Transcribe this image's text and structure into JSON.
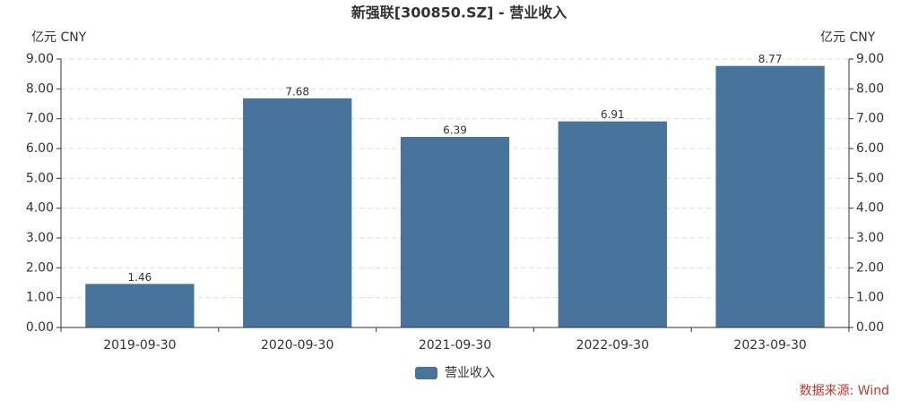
{
  "chart_data": {
    "type": "bar",
    "title": "新强联[300850.SZ] - 营业收入",
    "y_unit": "亿元  CNY",
    "y2_unit": "亿元  CNY",
    "categories": [
      "2019-09-30",
      "2020-09-30",
      "2021-09-30",
      "2022-09-30",
      "2023-09-30"
    ],
    "series": [
      {
        "name": "营业收入",
        "color": "#48749c",
        "values": [
          1.46,
          7.68,
          6.39,
          6.91,
          8.77
        ]
      }
    ],
    "ylim": [
      0,
      9
    ],
    "yticks": [
      {
        "value": 0,
        "label": "0.00"
      },
      {
        "value": 1,
        "label": "1.00"
      },
      {
        "value": 2,
        "label": "2.00"
      },
      {
        "value": 3,
        "label": "3.00"
      },
      {
        "value": 4,
        "label": "4.00"
      },
      {
        "value": 5,
        "label": "5.00"
      },
      {
        "value": 6,
        "label": "6.00"
      },
      {
        "value": 7,
        "label": "7.00"
      },
      {
        "value": 8,
        "label": "8.00"
      },
      {
        "value": 9,
        "label": "9.00"
      }
    ],
    "y2lim": [
      0,
      9
    ],
    "y2ticks": [
      {
        "value": 0,
        "label": "0.00"
      },
      {
        "value": 1,
        "label": "1.00"
      },
      {
        "value": 2,
        "label": "2.00"
      },
      {
        "value": 3,
        "label": "3.00"
      },
      {
        "value": 4,
        "label": "4.00"
      },
      {
        "value": 5,
        "label": "5.00"
      },
      {
        "value": 6,
        "label": "6.00"
      },
      {
        "value": 7,
        "label": "7.00"
      },
      {
        "value": 8,
        "label": "8.00"
      },
      {
        "value": 9,
        "label": "9.00"
      }
    ],
    "grid": true,
    "legend": "bottom",
    "source": "数据来源: Wind"
  }
}
